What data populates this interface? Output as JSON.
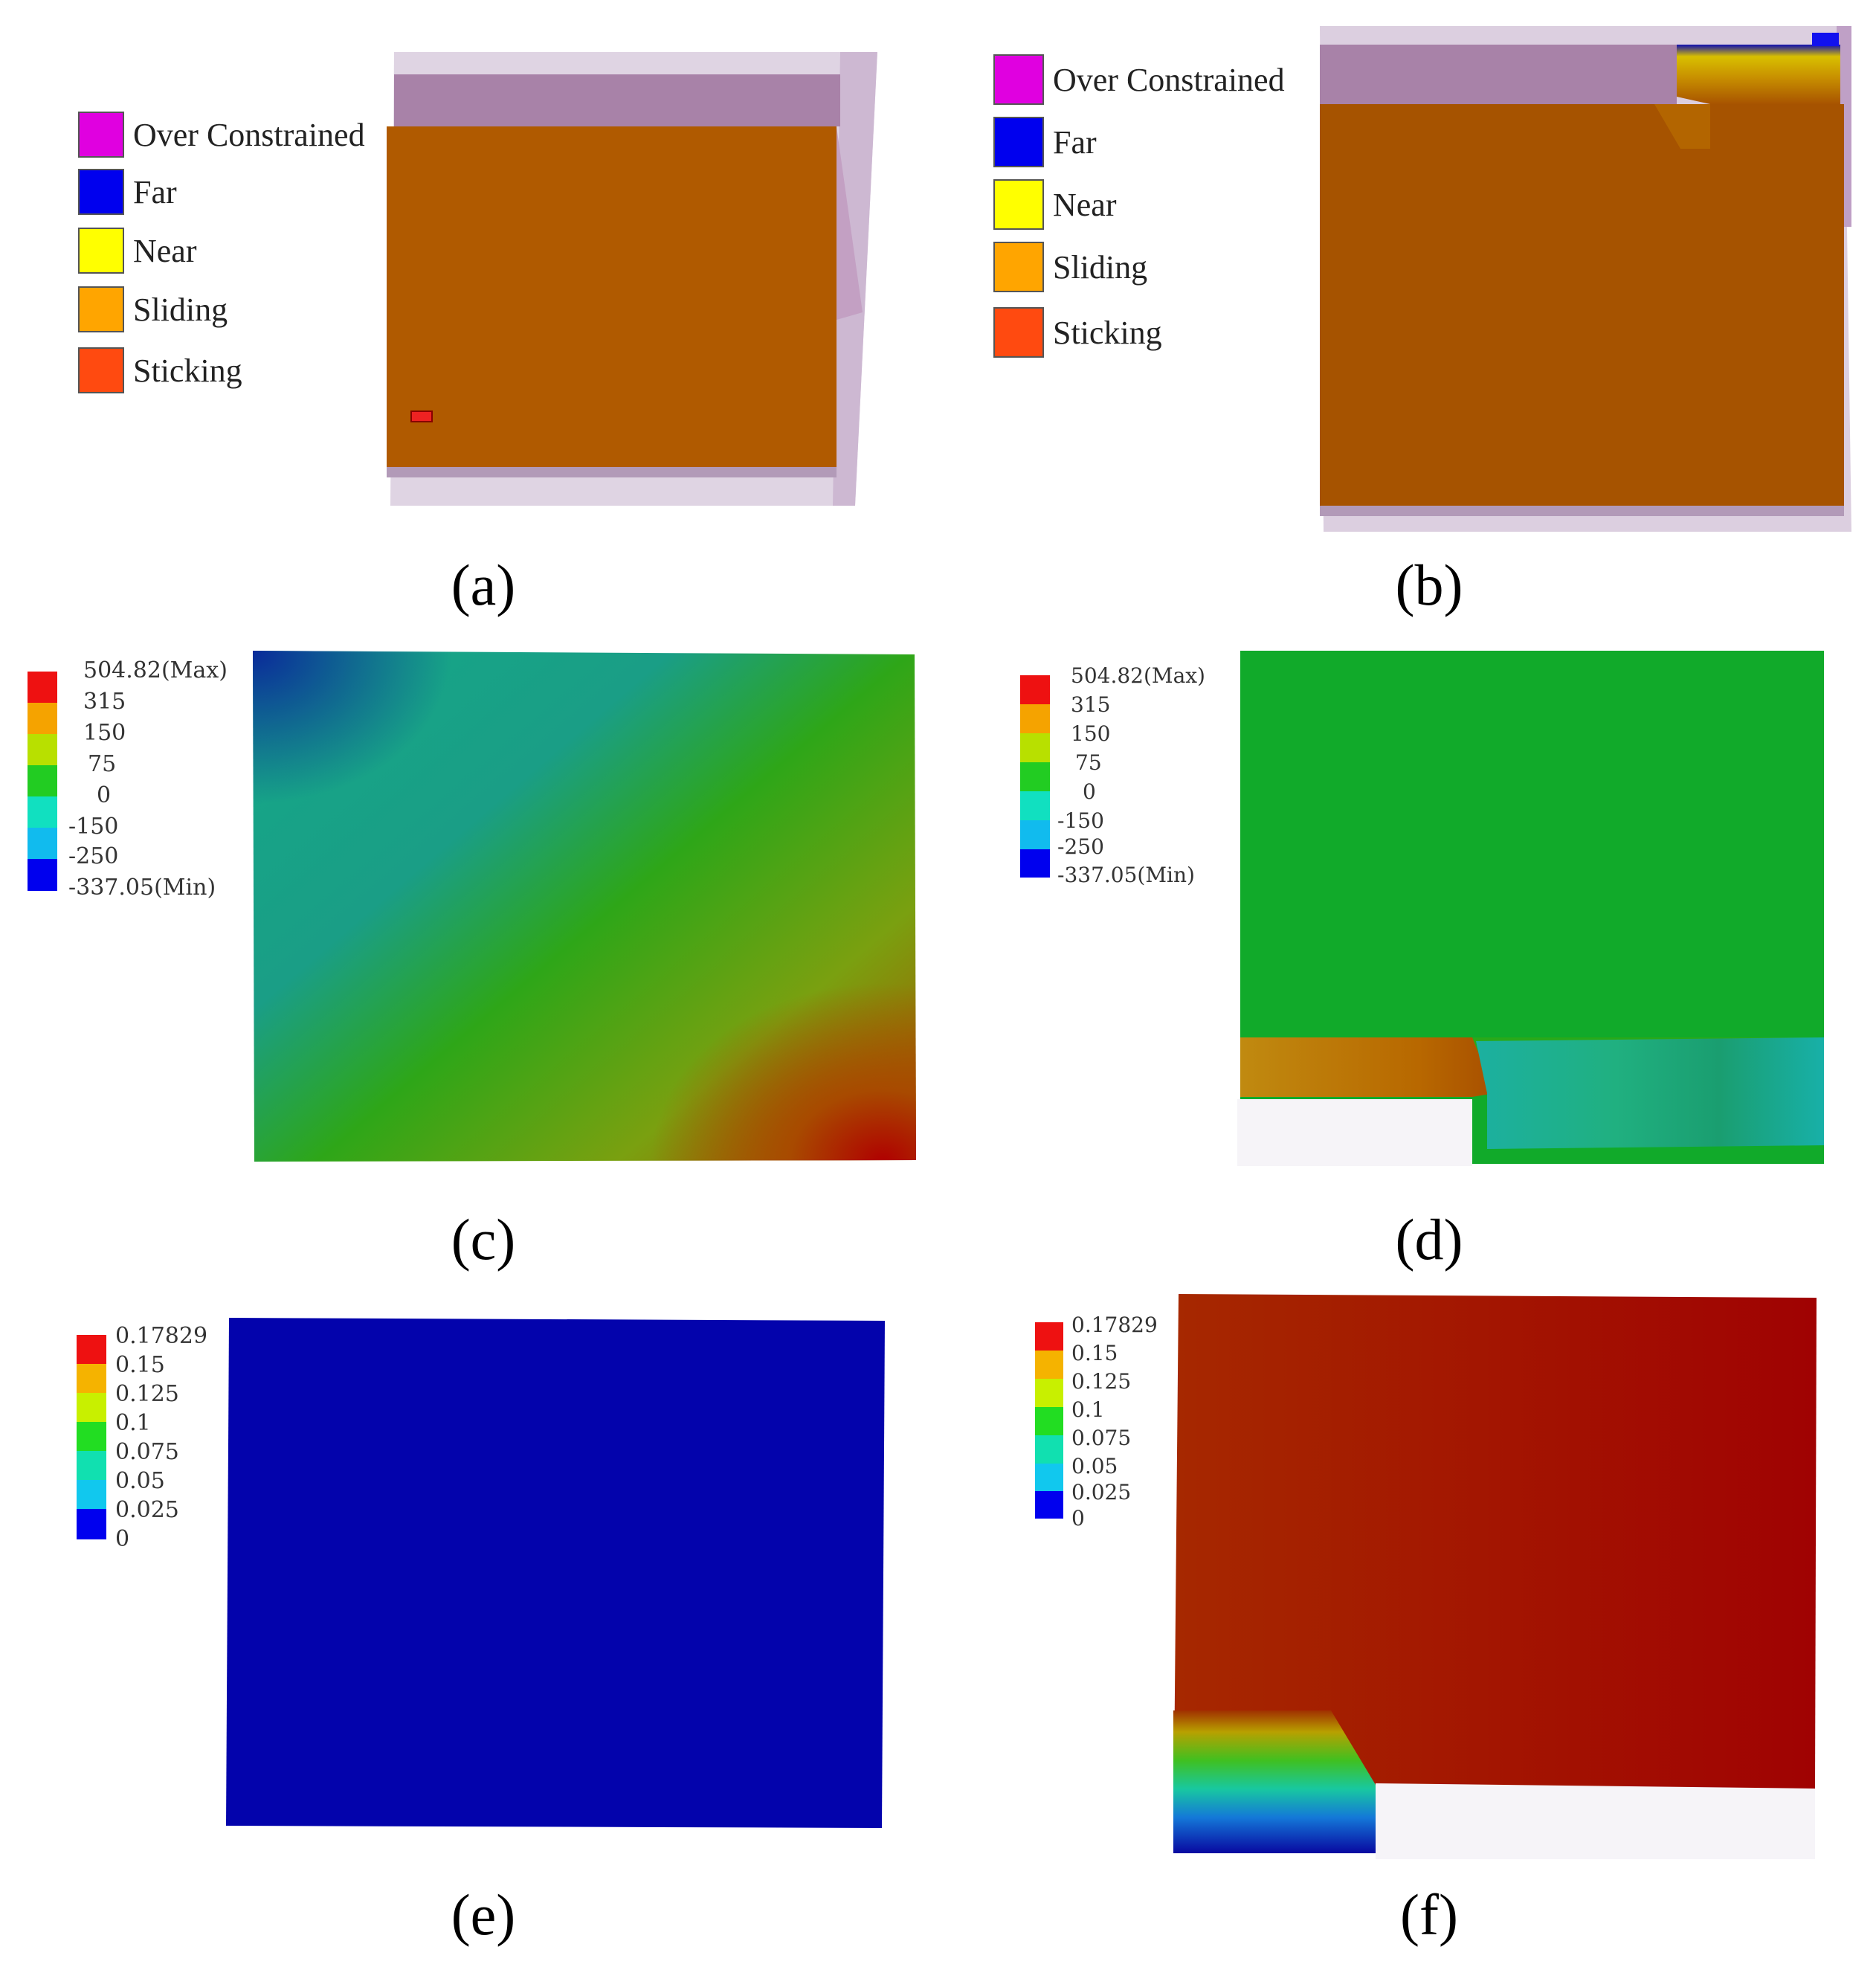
{
  "panels": {
    "a": {
      "label": "(a)"
    },
    "b": {
      "label": "(b)"
    },
    "c": {
      "label": "(c)"
    },
    "d": {
      "label": "(d)"
    },
    "e": {
      "label": "(e)"
    },
    "f": {
      "label": "(f)"
    }
  },
  "contact_legend": {
    "items": [
      {
        "label": "Over Constrained",
        "color": "#e000e0"
      },
      {
        "label": "Far",
        "color": "#0000ee"
      },
      {
        "label": "Near",
        "color": "#ffff00"
      },
      {
        "label": "Sliding",
        "color": "#ffa500"
      },
      {
        "label": "Sticking",
        "color": "#ff4a10"
      }
    ]
  },
  "stress_scale": {
    "ticks": [
      "504.82(Max)",
      "315",
      "150",
      "75",
      "0",
      "-150",
      "-250",
      "-337.05(Min)"
    ],
    "colors": [
      "#ee1111",
      "#f5a300",
      "#b8e000",
      "#22cc22",
      "#11e0c0",
      "#11bbee",
      "#0000ee"
    ]
  },
  "gap_scale": {
    "ticks": [
      "0.17829",
      "0.15",
      "0.125",
      "0.1",
      "0.075",
      "0.05",
      "0.025",
      "0"
    ],
    "colors": [
      "#ee1111",
      "#f5b300",
      "#c8f000",
      "#22dd22",
      "#11e0b0",
      "#11c8ee",
      "#0000ee"
    ]
  },
  "markers": {
    "a_small": "Max",
    "b_small": "Min"
  }
}
